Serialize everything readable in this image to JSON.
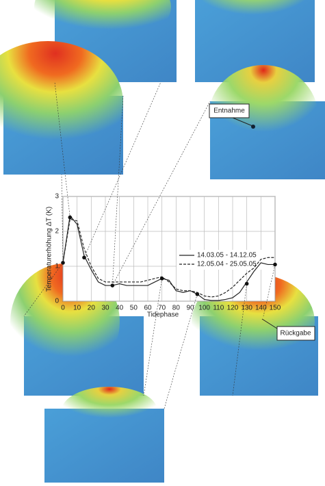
{
  "chart_data": {
    "type": "line",
    "x_label": "Tidephase",
    "y_label": "Temperaturerhöhung ΔT (K)",
    "x": [
      0,
      5,
      10,
      15,
      20,
      25,
      30,
      35,
      40,
      45,
      50,
      55,
      60,
      65,
      70,
      75,
      80,
      85,
      90,
      95,
      100,
      105,
      110,
      115,
      120,
      125,
      130,
      135,
      140,
      145,
      150
    ],
    "series": [
      {
        "name": "14.03.05 - 14.12.05",
        "color": "#222222",
        "dash": false,
        "values": [
          1.1,
          2.45,
          2.2,
          1.3,
          0.9,
          0.55,
          0.45,
          0.45,
          0.5,
          0.45,
          0.45,
          0.45,
          0.45,
          0.55,
          0.65,
          0.6,
          0.3,
          0.25,
          0.3,
          0.2,
          0.05,
          0.02,
          0.02,
          0.05,
          0.1,
          0.25,
          0.55,
          0.85,
          1.1,
          1.05,
          1.05
        ]
      },
      {
        "name": "12.05.04 - 25.05.05",
        "color": "#222222",
        "dash": true,
        "values": [
          1.1,
          2.35,
          2.3,
          1.5,
          1.0,
          0.65,
          0.55,
          0.55,
          0.55,
          0.55,
          0.55,
          0.55,
          0.6,
          0.65,
          0.7,
          0.55,
          0.35,
          0.3,
          0.3,
          0.25,
          0.15,
          0.12,
          0.15,
          0.25,
          0.4,
          0.6,
          0.8,
          0.95,
          1.2,
          1.25,
          1.25
        ]
      }
    ],
    "highlight_points": {
      "x": [
        0,
        5,
        15,
        35,
        70,
        95,
        130,
        150
      ],
      "y": [
        1.1,
        2.4,
        1.25,
        0.45,
        0.65,
        0.2,
        0.5,
        1.05
      ]
    },
    "xlim": [
      0,
      150
    ],
    "ylim": [
      0,
      3
    ],
    "xticks": [
      0,
      10,
      20,
      30,
      40,
      50,
      60,
      70,
      80,
      90,
      100,
      110,
      120,
      130,
      140,
      150
    ],
    "yticks": [
      0,
      1,
      2,
      3
    ],
    "grid": true,
    "annotations": [
      "Entnahme",
      "Rückgabe"
    ]
  }
}
